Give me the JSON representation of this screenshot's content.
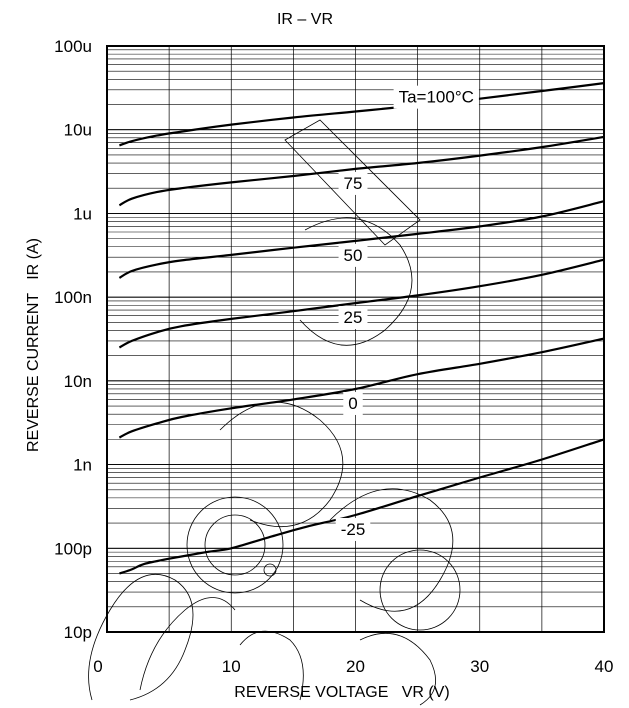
{
  "chart_data": {
    "type": "line",
    "title": "IR – VR",
    "xlabel": "REVERSE VOLTAGE   VR (V)",
    "ylabel": "REVERSE CURRENT   IR (A)",
    "x_scale": "linear",
    "y_scale": "log",
    "xlim": [
      0,
      40
    ],
    "ylim": [
      1e-11,
      0.0001
    ],
    "x_ticks": [
      0,
      10,
      20,
      30,
      40
    ],
    "x_tick_labels": [
      "0",
      "10",
      "20",
      "30",
      "40"
    ],
    "y_ticks": [
      1e-11,
      1e-10,
      1e-09,
      1e-08,
      1e-07,
      1e-06,
      1e-05,
      0.0001
    ],
    "y_tick_labels": [
      "10p",
      "100p",
      "1n",
      "10n",
      "100n",
      "1u",
      "10u",
      "100u"
    ],
    "grid": true,
    "series": [
      {
        "name": "Ta=100°C",
        "x": [
          1,
          2,
          4,
          6,
          10,
          15,
          20,
          25,
          30,
          35,
          40
        ],
        "y": [
          6.5e-06,
          7.3e-06,
          8.5e-06,
          9.5e-06,
          1.15e-05,
          1.4e-05,
          1.65e-05,
          1.95e-05,
          2.35e-05,
          2.9e-05,
          3.6e-05
        ]
      },
      {
        "name": "75",
        "x": [
          1,
          2,
          4,
          6,
          10,
          15,
          20,
          25,
          30,
          35,
          40
        ],
        "y": [
          1.25e-06,
          1.5e-06,
          1.8e-06,
          2e-06,
          2.35e-06,
          2.8e-06,
          3.4e-06,
          4e-06,
          4.9e-06,
          6.2e-06,
          8.2e-06
        ]
      },
      {
        "name": "50",
        "x": [
          1,
          2,
          4,
          6,
          10,
          15,
          20,
          25,
          30,
          35,
          40
        ],
        "y": [
          1.7e-07,
          2.05e-07,
          2.45e-07,
          2.75e-07,
          3.2e-07,
          3.9e-07,
          4.7e-07,
          5.7e-07,
          7e-07,
          9.2e-07,
          1.4e-06
        ]
      },
      {
        "name": "25",
        "x": [
          1,
          2,
          4,
          6,
          10,
          15,
          20,
          25,
          30,
          35,
          40
        ],
        "y": [
          2.5e-08,
          3e-08,
          3.8e-08,
          4.5e-08,
          5.5e-08,
          6.8e-08,
          8.5e-08,
          1.05e-07,
          1.35e-07,
          1.85e-07,
          2.8e-07
        ]
      },
      {
        "name": "0",
        "x": [
          1,
          2,
          4,
          6,
          10,
          15,
          20,
          25,
          30,
          35,
          40
        ],
        "y": [
          2.1e-09,
          2.5e-09,
          3.1e-09,
          3.7e-09,
          4.7e-09,
          6e-09,
          8e-09,
          1.2e-08,
          1.6e-08,
          2.2e-08,
          3.2e-08
        ]
      },
      {
        "name": "-25",
        "x": [
          1,
          2,
          3,
          5,
          8,
          10,
          13,
          16,
          20,
          25,
          30,
          35,
          40
        ],
        "y": [
          5e-11,
          5.6e-11,
          6.5e-11,
          7.5e-11,
          9e-11,
          1e-10,
          1.35e-10,
          1.8e-10,
          2.5e-10,
          4.2e-10,
          7e-10,
          1.15e-09,
          2e-09
        ]
      }
    ]
  }
}
